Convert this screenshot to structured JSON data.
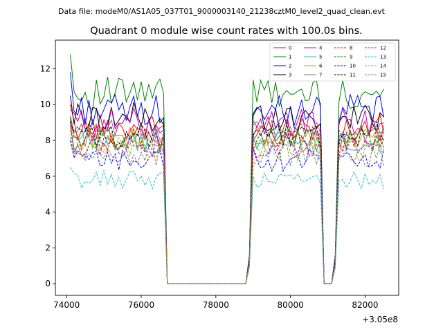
{
  "suptitle": "Data file: modeM0/AS1A05_037T01_9000003140_21238cztM0_level2_quad_clean.evt",
  "chart_data": {
    "type": "line",
    "title": "Quadrant 0 module wise count rates with 100.0s bins.",
    "xlabel": "",
    "ylabel": "",
    "x_offset_label": "+3.05e8",
    "xlim": [
      73700,
      82900
    ],
    "ylim": [
      -0.65,
      13.6
    ],
    "x_ticks": [
      74000,
      76000,
      78000,
      80000,
      82000
    ],
    "x_tick_labels": [
      "74000",
      "76000",
      "78000",
      "80000",
      "82000"
    ],
    "y_ticks": [
      0,
      2,
      4,
      6,
      8,
      10,
      12
    ],
    "y_tick_labels": [
      "0",
      "2",
      "4",
      "6",
      "8",
      "10",
      "12"
    ],
    "grid": false,
    "legend_placement": "top-right",
    "legend_columns": 4,
    "segments": [
      {
        "start": 74100,
        "end": 76600
      },
      {
        "start": 78900,
        "end": 80800
      },
      {
        "start": 81200,
        "end": 82500
      }
    ],
    "x": [
      74100,
      74200,
      74300,
      74400,
      74500,
      74600,
      74700,
      74800,
      74900,
      75000,
      75100,
      75200,
      75300,
      75400,
      75500,
      75600,
      75700,
      75800,
      75900,
      76000,
      76100,
      76200,
      76300,
      76400,
      76500,
      76600,
      76700,
      76800,
      76900,
      77000,
      77100,
      77200,
      77300,
      77400,
      77500,
      77600,
      77700,
      77800,
      77900,
      78000,
      78100,
      78200,
      78300,
      78400,
      78500,
      78600,
      78700,
      78800,
      78900,
      79000,
      79100,
      79200,
      79300,
      79400,
      79500,
      79600,
      79700,
      79800,
      79900,
      80000,
      80100,
      80200,
      80300,
      80400,
      80500,
      80600,
      80700,
      80800,
      80900,
      81000,
      81100,
      81200,
      81300,
      81400,
      81500,
      81600,
      81700,
      81800,
      81900,
      82000,
      82100,
      82200,
      82300,
      82400,
      82500
    ],
    "series": [
      {
        "name": "0",
        "color": "#ff0000",
        "dash": "solid",
        "peak": 10.0,
        "level": 8.7
      },
      {
        "name": "1",
        "color": "#008000",
        "dash": "solid",
        "peak": 12.8,
        "level": 10.6
      },
      {
        "name": "2",
        "color": "#0000ff",
        "dash": "solid",
        "peak": 11.8,
        "level": 9.7
      },
      {
        "name": "3",
        "color": "#000000",
        "dash": "solid",
        "peak": 10.5,
        "level": 9.3
      },
      {
        "name": "4",
        "color": "#c000c0",
        "dash": "solid",
        "peak": 9.7,
        "level": 9.0
      },
      {
        "name": "5",
        "color": "#20c0b0",
        "dash": "solid",
        "peak": 9.0,
        "level": 7.9
      },
      {
        "name": "6",
        "color": "#b0b000",
        "dash": "solid",
        "peak": 9.2,
        "level": 8.2
      },
      {
        "name": "7",
        "color": "#808080",
        "dash": "solid",
        "peak": 9.4,
        "level": 8.4
      },
      {
        "name": "8",
        "color": "#ff0000",
        "dash": "dashed",
        "peak": 9.3,
        "level": 8.1
      },
      {
        "name": "9",
        "color": "#008000",
        "dash": "dashed",
        "peak": 9.1,
        "level": 8.0
      },
      {
        "name": "10",
        "color": "#0000ff",
        "dash": "dashed",
        "peak": 8.0,
        "level": 6.9
      },
      {
        "name": "11",
        "color": "#000000",
        "dash": "dashed",
        "peak": 9.0,
        "level": 8.3
      },
      {
        "name": "12",
        "color": "#c000c0",
        "dash": "dashed",
        "peak": 8.8,
        "level": 7.7
      },
      {
        "name": "13",
        "color": "#20c0c0",
        "dash": "dashed",
        "peak": 6.5,
        "level": 5.8
      },
      {
        "name": "14",
        "color": "#b0b000",
        "dash": "dashed",
        "peak": 8.6,
        "level": 7.5
      },
      {
        "name": "15",
        "color": "#808080",
        "dash": "dashed",
        "peak": 8.2,
        "level": 7.2
      }
    ]
  }
}
